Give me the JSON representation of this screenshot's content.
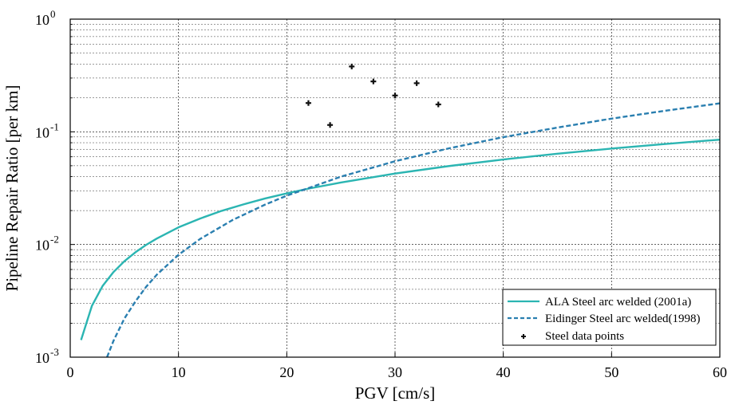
{
  "chart_data": {
    "type": "line",
    "xlabel": "PGV [cm/s]",
    "ylabel": "Pipeline Repair Ratio [per km]",
    "xlim": [
      0,
      60
    ],
    "ylim": [
      0.001,
      1
    ],
    "yscale": "log",
    "grid": true,
    "legend_position": "bottom-right",
    "x_ticks": [
      "0",
      "10",
      "20",
      "30",
      "40",
      "50",
      "60"
    ],
    "y_ticks": [
      {
        "base": "10",
        "exp": "-3"
      },
      {
        "base": "10",
        "exp": "-2"
      },
      {
        "base": "10",
        "exp": "-1"
      },
      {
        "base": "10",
        "exp": "0"
      }
    ],
    "series": [
      {
        "name": "ALA Steel arc welded (2001a)",
        "kind": "line",
        "color": "#2bb5b2",
        "dash": "solid",
        "x": [
          1,
          2,
          3,
          4,
          5,
          6,
          7,
          8,
          10,
          12,
          14,
          16,
          18,
          20,
          22,
          25,
          30,
          35,
          40,
          45,
          50,
          55,
          60
        ],
        "y": [
          0.00142,
          0.00285,
          0.0043,
          0.0057,
          0.0071,
          0.0085,
          0.0099,
          0.0113,
          0.0142,
          0.017,
          0.0199,
          0.0227,
          0.0256,
          0.0284,
          0.0313,
          0.0355,
          0.0426,
          0.0497,
          0.0568,
          0.0639,
          0.071,
          0.0781,
          0.0852
        ]
      },
      {
        "name": "Eidinger Steel arc welded(1998)",
        "kind": "line",
        "color": "#2a7fb0",
        "dash": "dashed",
        "x": [
          3.4,
          4,
          5,
          6,
          7,
          8,
          10,
          12,
          15,
          18,
          20,
          25,
          30,
          35,
          40,
          45,
          50,
          55,
          60
        ],
        "y": [
          0.001,
          0.0014,
          0.0022,
          0.0031,
          0.0042,
          0.0054,
          0.0081,
          0.0112,
          0.0165,
          0.0226,
          0.0271,
          0.04,
          0.0548,
          0.0714,
          0.0897,
          0.109,
          0.131,
          0.154,
          0.179
        ]
      },
      {
        "name": "Steel data points",
        "kind": "scatter",
        "color": "#111111",
        "x": [
          22,
          24,
          26,
          28,
          30,
          32,
          34
        ],
        "y": [
          0.18,
          0.115,
          0.38,
          0.28,
          0.21,
          0.27,
          0.175
        ]
      }
    ]
  }
}
